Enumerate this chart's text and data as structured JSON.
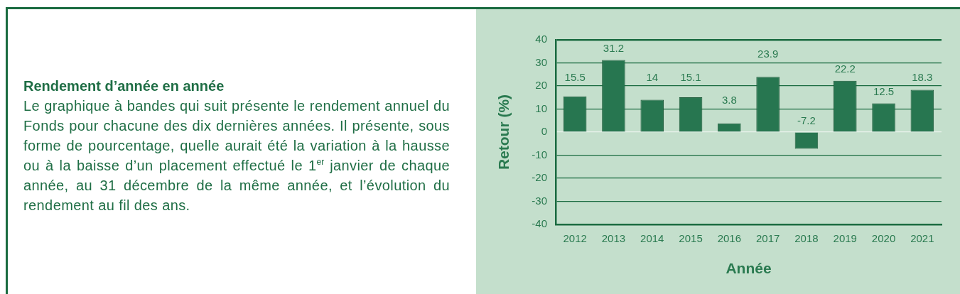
{
  "chart_data": {
    "type": "bar",
    "title": "Rendement d’année en année",
    "subtitle": "Le graphique à bandes qui suit présente le rendement annuel du Fonds pour chacune des dix dernières années. Il présente, sous forme de pourcentage, quelle aurait été la variation à la hausse ou à la baisse d’un placement effectué le 1$^{er}$ janvier de chaque année, au 31 décembre de la même année, et l’évolution du rendement au fil des ans.",
    "xlabel": "Année",
    "ylabel": "Retour (%)",
    "categories": [
      "2012",
      "2013",
      "2014",
      "2015",
      "2016",
      "2017",
      "2018",
      "2019",
      "2020",
      "2021"
    ],
    "values": [
      15.5,
      31.2,
      14,
      15.1,
      3.8,
      23.9,
      -7.2,
      22.2,
      12.5,
      18.3
    ],
    "color": "#277650",
    "ylim": [
      -40,
      40
    ],
    "yticks": [
      -40,
      -30,
      -20,
      -10,
      0,
      10,
      20,
      30,
      40
    ],
    "grid": "y",
    "data_labels": true
  }
}
